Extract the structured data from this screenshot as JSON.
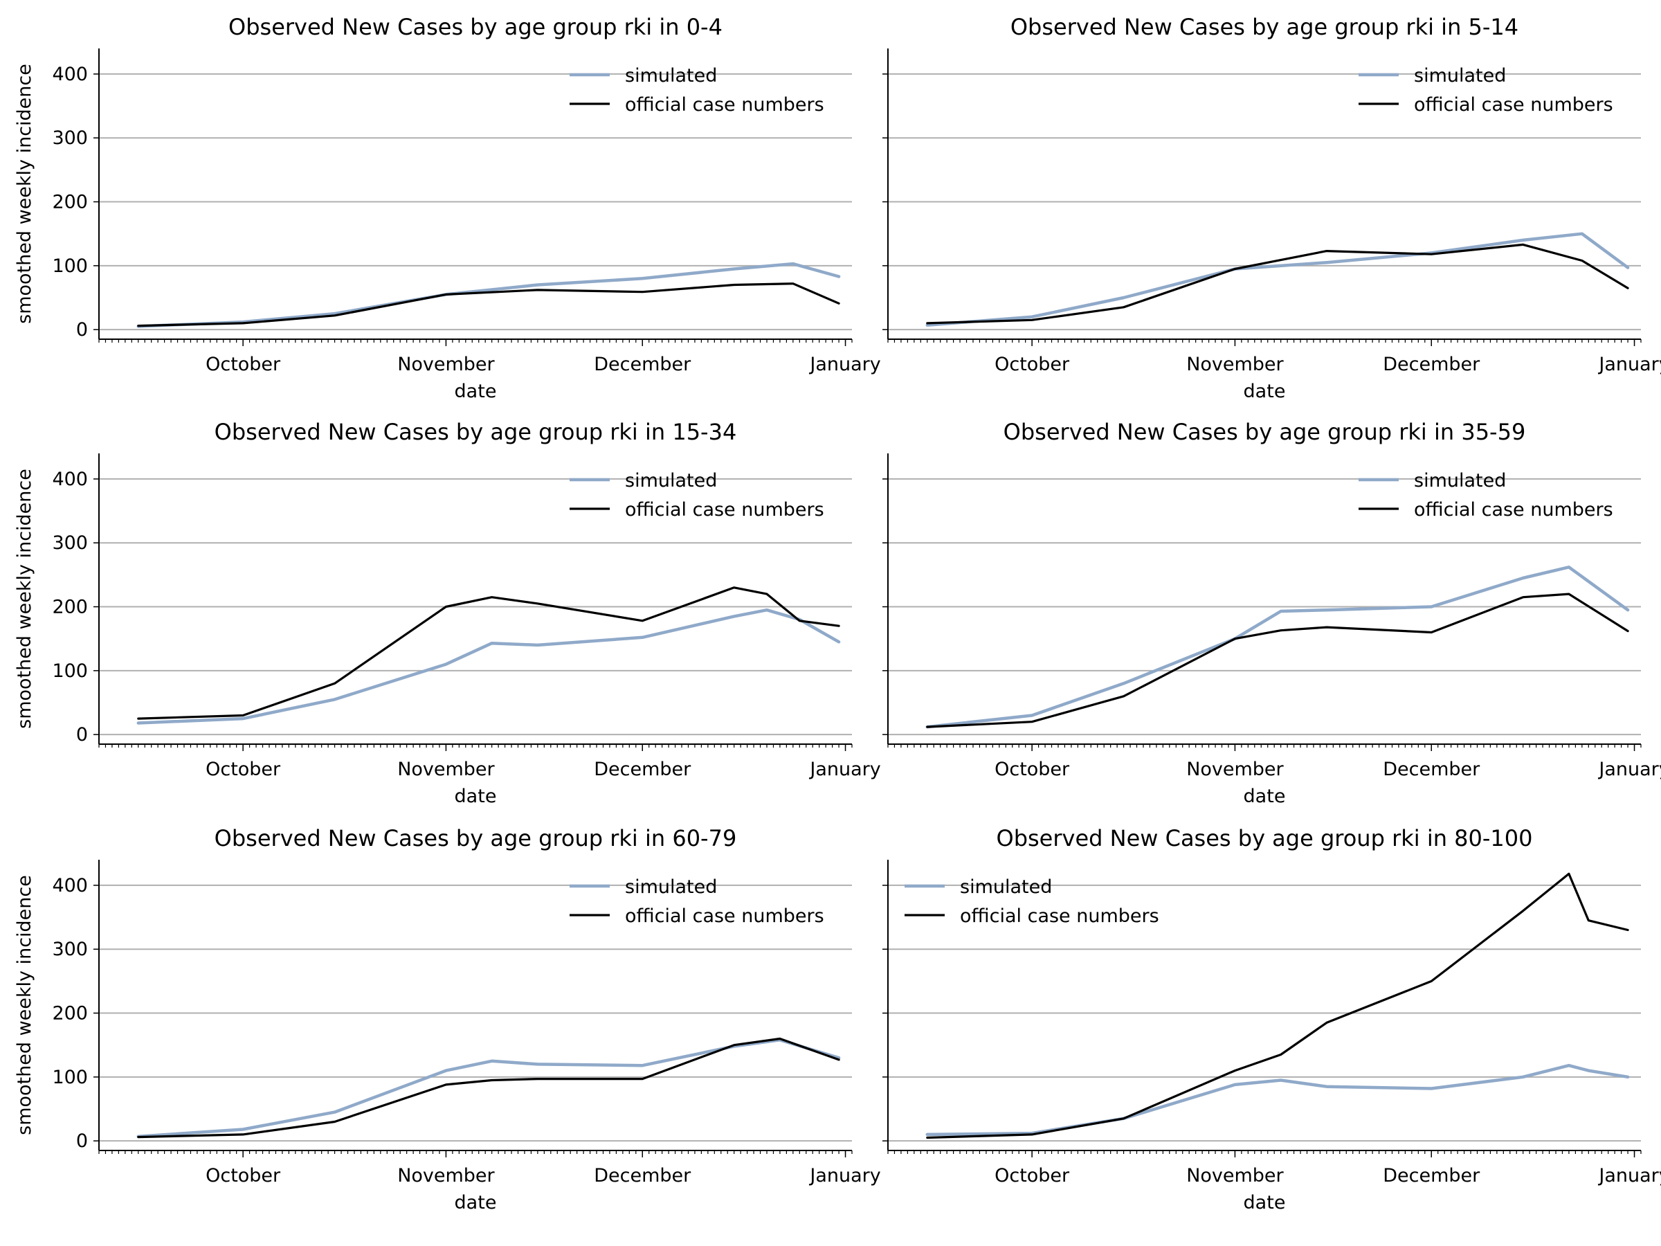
{
  "figure": {
    "ylabel": "smoothed weekly incidence",
    "xlabel": "date",
    "x_ticks": [
      "October",
      "November",
      "December",
      "January"
    ],
    "y_ticks": [
      0,
      100,
      200,
      300,
      400
    ],
    "ylim": [
      -15,
      440
    ],
    "xlim": [
      "2020-09-09",
      "2021-01-02"
    ],
    "grid": "horizontal",
    "colors": {
      "simulated": "#8fa9c9",
      "official": "#000000",
      "grid": "#b0b0b0"
    }
  },
  "chart_data": [
    {
      "type": "line",
      "title": "Observed New Cases by age group rki in 0-4",
      "legend_position": "top-right",
      "x": [
        "2020-09-15",
        "2020-10-01",
        "2020-10-15",
        "2020-11-01",
        "2020-11-15",
        "2020-12-01",
        "2020-12-15",
        "2020-12-24",
        "2020-12-31"
      ],
      "series": [
        {
          "name": "simulated",
          "values": [
            5,
            12,
            25,
            55,
            70,
            80,
            95,
            103,
            83
          ]
        },
        {
          "name": "official case numbers",
          "values": [
            6,
            10,
            22,
            55,
            62,
            59,
            70,
            72,
            41
          ]
        }
      ]
    },
    {
      "type": "line",
      "title": "Observed New Cases by age group rki in 5-14",
      "legend_position": "top-right",
      "x": [
        "2020-09-15",
        "2020-10-01",
        "2020-10-15",
        "2020-11-01",
        "2020-11-15",
        "2020-12-01",
        "2020-12-15",
        "2020-12-24",
        "2020-12-31"
      ],
      "series": [
        {
          "name": "simulated",
          "values": [
            7,
            20,
            50,
            95,
            105,
            120,
            140,
            150,
            97
          ]
        },
        {
          "name": "official case numbers",
          "values": [
            10,
            15,
            35,
            95,
            123,
            118,
            133,
            108,
            65
          ]
        }
      ]
    },
    {
      "type": "line",
      "title": "Observed New Cases by age group rki in 15-34",
      "legend_position": "top-right",
      "x": [
        "2020-09-15",
        "2020-10-01",
        "2020-10-15",
        "2020-11-01",
        "2020-11-08",
        "2020-11-15",
        "2020-12-01",
        "2020-12-15",
        "2020-12-20",
        "2020-12-25",
        "2020-12-31"
      ],
      "series": [
        {
          "name": "simulated",
          "values": [
            18,
            25,
            55,
            110,
            143,
            140,
            152,
            185,
            195,
            180,
            145
          ]
        },
        {
          "name": "official case numbers",
          "values": [
            25,
            30,
            80,
            200,
            215,
            205,
            178,
            230,
            220,
            178,
            170
          ]
        }
      ]
    },
    {
      "type": "line",
      "title": "Observed New Cases by age group rki in 35-59",
      "legend_position": "top-right",
      "x": [
        "2020-09-15",
        "2020-10-01",
        "2020-10-15",
        "2020-11-01",
        "2020-11-08",
        "2020-11-15",
        "2020-12-01",
        "2020-12-15",
        "2020-12-22",
        "2020-12-31"
      ],
      "series": [
        {
          "name": "simulated",
          "values": [
            12,
            30,
            80,
            150,
            193,
            195,
            200,
            245,
            262,
            195
          ]
        },
        {
          "name": "official case numbers",
          "values": [
            12,
            20,
            60,
            150,
            163,
            168,
            160,
            215,
            220,
            162
          ]
        }
      ]
    },
    {
      "type": "line",
      "title": "Observed New Cases by age group rki in 60-79",
      "legend_position": "top-right",
      "x": [
        "2020-09-15",
        "2020-10-01",
        "2020-10-15",
        "2020-11-01",
        "2020-11-08",
        "2020-11-15",
        "2020-12-01",
        "2020-12-15",
        "2020-12-22",
        "2020-12-31"
      ],
      "series": [
        {
          "name": "simulated",
          "values": [
            7,
            18,
            45,
            110,
            125,
            120,
            118,
            148,
            158,
            130
          ]
        },
        {
          "name": "official case numbers",
          "values": [
            6,
            10,
            30,
            88,
            95,
            97,
            97,
            150,
            160,
            127
          ]
        }
      ]
    },
    {
      "type": "line",
      "title": "Observed New Cases by age group rki in 80-100",
      "legend_position": "top-left",
      "x": [
        "2020-09-15",
        "2020-10-01",
        "2020-10-15",
        "2020-11-01",
        "2020-11-08",
        "2020-11-15",
        "2020-12-01",
        "2020-12-15",
        "2020-12-22",
        "2020-12-25",
        "2020-12-31"
      ],
      "series": [
        {
          "name": "simulated",
          "values": [
            10,
            12,
            35,
            88,
            95,
            85,
            82,
            100,
            118,
            110,
            100
          ]
        },
        {
          "name": "official case numbers",
          "values": [
            5,
            10,
            35,
            110,
            135,
            185,
            250,
            360,
            418,
            345,
            330
          ]
        }
      ]
    }
  ]
}
